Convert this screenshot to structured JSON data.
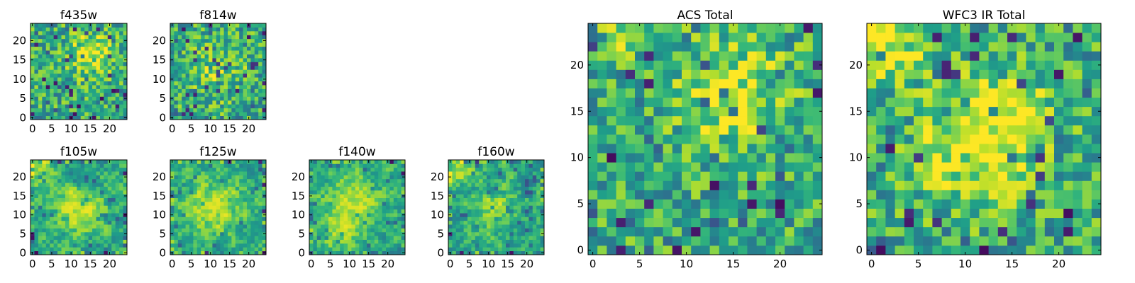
{
  "figure": {
    "background": "#ffffff"
  },
  "chart_data": [
    {
      "type": "heatmap",
      "title": "f435w",
      "grid_size": 25,
      "xlim": [
        0,
        24
      ],
      "ylim": [
        0,
        24
      ],
      "x_ticks": [
        0,
        5,
        10,
        15,
        20
      ],
      "y_ticks": [
        0,
        5,
        10,
        15,
        20
      ],
      "colormap": "viridis",
      "colorbar": false,
      "dense_dots": false,
      "seed": 11,
      "blobs": [
        [
          15,
          17,
          0.35,
          4
        ]
      ]
    },
    {
      "type": "heatmap",
      "title": "f814w",
      "grid_size": 25,
      "xlim": [
        0,
        24
      ],
      "ylim": [
        0,
        24
      ],
      "x_ticks": [
        0,
        5,
        10,
        15,
        20
      ],
      "y_ticks": [
        0,
        5,
        10,
        15,
        20
      ],
      "colormap": "viridis",
      "colorbar": false,
      "dense_dots": false,
      "seed": 23,
      "blobs": [
        [
          12,
          12,
          0.15,
          6
        ]
      ]
    },
    {
      "type": "heatmap",
      "title": "f105w",
      "grid_size": 25,
      "xlim": [
        0,
        24
      ],
      "ylim": [
        0,
        24
      ],
      "x_ticks": [
        0,
        5,
        10,
        15,
        20
      ],
      "y_ticks": [
        0,
        5,
        10,
        15,
        20
      ],
      "colormap": "viridis",
      "colorbar": false,
      "dense_dots": true,
      "seed": 37,
      "blobs": [
        [
          13,
          11,
          0.4,
          4
        ],
        [
          2,
          21,
          0.3,
          3
        ]
      ]
    },
    {
      "type": "heatmap",
      "title": "f125w",
      "grid_size": 25,
      "xlim": [
        0,
        24
      ],
      "ylim": [
        0,
        24
      ],
      "x_ticks": [
        0,
        5,
        10,
        15,
        20
      ],
      "y_ticks": [
        0,
        5,
        10,
        15,
        20
      ],
      "colormap": "viridis",
      "colorbar": false,
      "dense_dots": true,
      "seed": 41,
      "blobs": [
        [
          11,
          12,
          0.35,
          5
        ]
      ]
    },
    {
      "type": "heatmap",
      "title": "f140w",
      "grid_size": 25,
      "xlim": [
        0,
        24
      ],
      "ylim": [
        0,
        24
      ],
      "x_ticks": [
        0,
        5,
        10,
        15,
        20
      ],
      "y_ticks": [
        0,
        5,
        10,
        15,
        20
      ],
      "colormap": "viridis",
      "colorbar": false,
      "dense_dots": true,
      "seed": 53,
      "blobs": [
        [
          11,
          13,
          0.35,
          5
        ],
        [
          6,
          5,
          0.25,
          3
        ]
      ]
    },
    {
      "type": "heatmap",
      "title": "f160w",
      "grid_size": 25,
      "xlim": [
        0,
        24
      ],
      "ylim": [
        0,
        24
      ],
      "x_ticks": [
        0,
        5,
        10,
        15,
        20
      ],
      "y_ticks": [
        0,
        5,
        10,
        15,
        20
      ],
      "colormap": "viridis",
      "colorbar": false,
      "dense_dots": true,
      "seed": 67,
      "blobs": [
        [
          2,
          22,
          0.35,
          3
        ],
        [
          12,
          11,
          0.25,
          4
        ]
      ]
    },
    {
      "type": "heatmap",
      "title": "ACS Total",
      "grid_size": 25,
      "xlim": [
        0,
        24
      ],
      "ylim": [
        0,
        24
      ],
      "x_ticks": [
        0,
        5,
        10,
        15,
        20
      ],
      "y_ticks": [
        0,
        5,
        10,
        15,
        20
      ],
      "colormap": "viridis",
      "colorbar": false,
      "dense_dots": false,
      "seed": 79,
      "blobs": [
        [
          15,
          17,
          0.3,
          4
        ],
        [
          3,
          23,
          0.25,
          2
        ]
      ]
    },
    {
      "type": "heatmap",
      "title": "WFC3 IR Total",
      "grid_size": 25,
      "xlim": [
        0,
        24
      ],
      "ylim": [
        0,
        24
      ],
      "x_ticks": [
        0,
        5,
        10,
        15,
        20
      ],
      "y_ticks": [
        0,
        5,
        10,
        15,
        20
      ],
      "colormap": "viridis",
      "colorbar": false,
      "dense_dots": false,
      "seed": 97,
      "blobs": [
        [
          1,
          23,
          0.45,
          3
        ],
        [
          11,
          11,
          0.4,
          4
        ],
        [
          15,
          15,
          0.25,
          3
        ]
      ]
    }
  ]
}
